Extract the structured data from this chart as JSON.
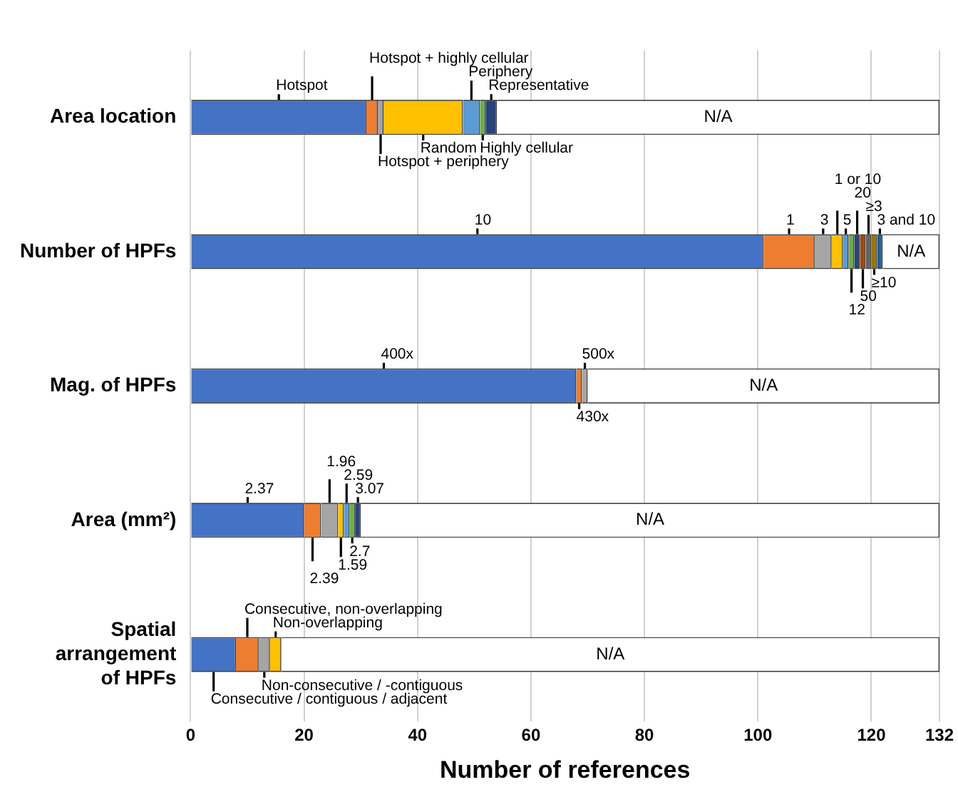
{
  "chart_data": {
    "type": "bar",
    "orientation": "horizontal",
    "stacked": true,
    "xlabel": "Number of references",
    "categories": [
      "Area location",
      "Number of HPFs",
      "Mag. of HPFs",
      "Area (mm²)",
      "Spatial arrangement of HPFs"
    ],
    "series": [
      {
        "color": "#4472c4",
        "values": [
          31,
          101,
          68,
          20,
          8
        ]
      },
      {
        "color": "#ed7d31",
        "values": [
          2,
          9,
          1,
          3,
          4
        ]
      },
      {
        "color": "#a5a5a5",
        "values": [
          1,
          3,
          1,
          3,
          2
        ]
      },
      {
        "color": "#ffc000",
        "values": [
          14,
          2,
          null,
          1,
          2
        ]
      },
      {
        "color": "#5b9bd5",
        "values": [
          3,
          1,
          null,
          1,
          null
        ]
      },
      {
        "color": "#70ad47",
        "values": [
          1,
          1,
          null,
          1,
          null
        ]
      },
      {
        "color": "#264478",
        "values": [
          2,
          1,
          null,
          1,
          null
        ]
      },
      {
        "color": "#9e480e",
        "values": [
          null,
          1,
          null,
          null,
          null
        ]
      },
      {
        "color": "#636363",
        "values": [
          null,
          1,
          null,
          null,
          null
        ]
      },
      {
        "color": "#997300",
        "values": [
          null,
          1,
          null,
          null,
          null
        ]
      },
      {
        "color": "#255e91",
        "values": [
          null,
          1,
          null,
          null,
          null
        ]
      },
      {
        "name": "N/A",
        "color": "#ffffff",
        "values": [
          78,
          10,
          62,
          102,
          116
        ]
      }
    ],
    "xlim": [
      0,
      132
    ],
    "xticks": [
      0,
      20,
      40,
      60,
      80,
      100,
      120,
      132
    ],
    "grid": "x",
    "legend": false,
    "annotations": [
      "Hotspot",
      "Hotspot + highly cellular",
      "Hotspot + periphery",
      "Random",
      "Periphery",
      "Highly cellular",
      "Representative",
      "10",
      "1",
      "3",
      "1 or 10",
      "5",
      "12",
      "20",
      "50",
      "≥3",
      "≥10",
      "3 and 10",
      "400x",
      "430x",
      "500x",
      "2.37",
      "2.39",
      "1.96",
      "1.59",
      "2.59",
      "2.7",
      "3.07",
      "Consecutive / contiguous / adjacent",
      "Consecutive, non-overlapping",
      "Non-consecutive / -contiguous",
      "Non-overlapping"
    ]
  }
}
